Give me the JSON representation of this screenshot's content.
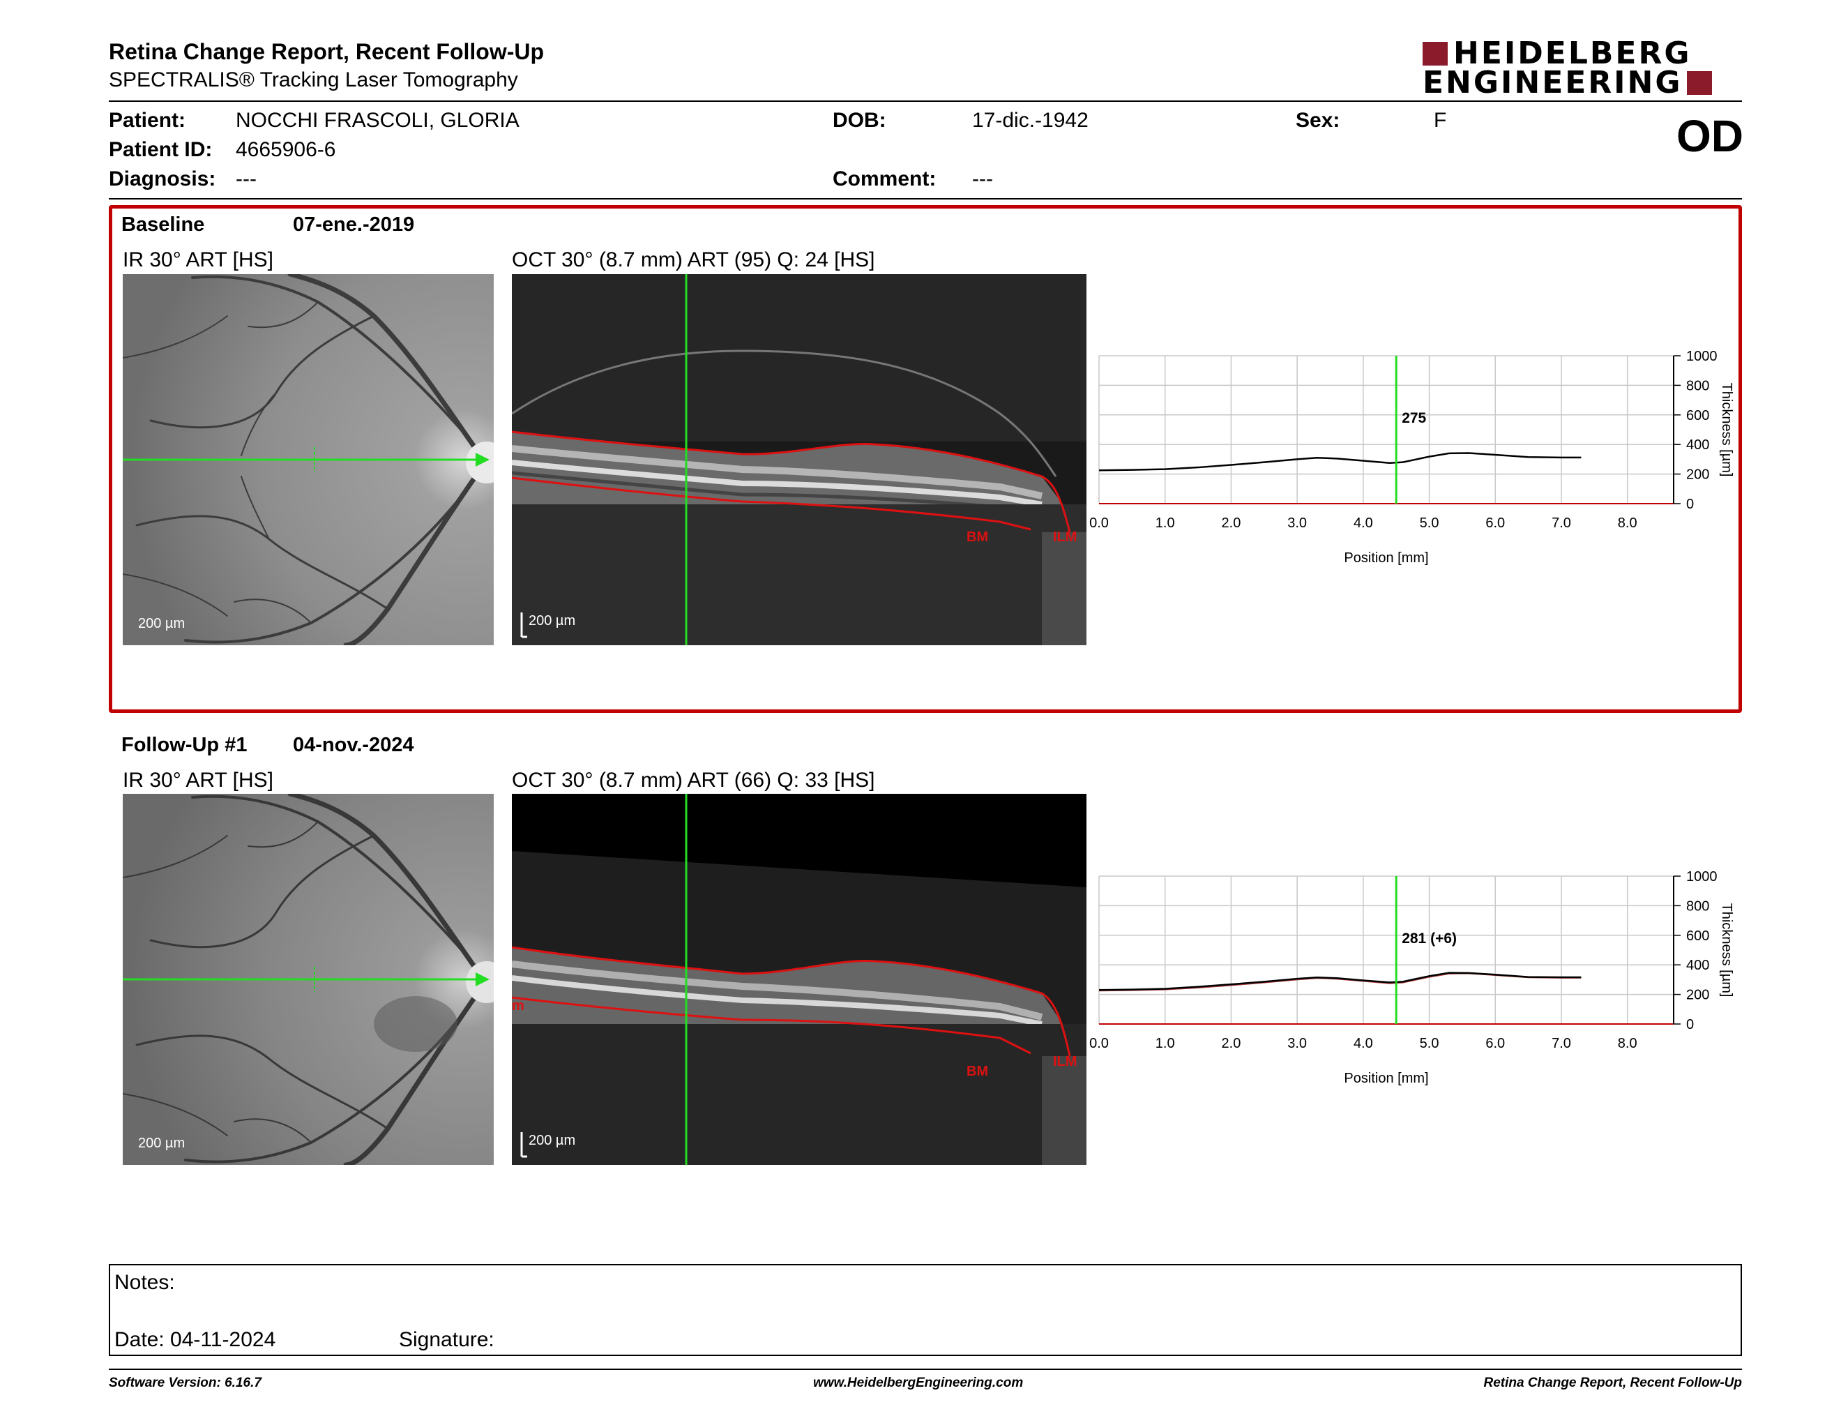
{
  "header": {
    "title": "Retina Change Report, Recent Follow-Up",
    "subtitle": "SPECTRALIS® Tracking Laser Tomography",
    "logo_line1": "HEIDELBERG",
    "logo_line2": "ENGINEERING",
    "eye": "OD"
  },
  "patient": {
    "patient_label": "Patient:",
    "patient_value": "NOCCHI FRASCOLI, GLORIA",
    "id_label": "Patient ID:",
    "id_value": "4665906-6",
    "diagnosis_label": "Diagnosis:",
    "diagnosis_value": "---",
    "dob_label": "DOB:",
    "dob_value": "17-dic.-1942",
    "comment_label": "Comment:",
    "comment_value": "---",
    "sex_label": "Sex:",
    "sex_value": "F"
  },
  "baseline": {
    "label": "Baseline",
    "date": "07-ene.-2019",
    "ir_caption": "IR 30° ART [HS]",
    "oct_caption": "OCT 30° (8.7 mm) ART (95) Q: 24 [HS]",
    "scale": "200 µm",
    "bm_label": "BM",
    "ilm_label": "ILM",
    "thickness_label": "275"
  },
  "followup": {
    "label": "Follow-Up #1",
    "date": "04-nov.-2024",
    "ir_caption": "IR 30° ART [HS]",
    "oct_caption": "OCT 30° (8.7 mm) ART (66) Q: 33 [HS]",
    "scale": "200 µm",
    "bm_label": "BM",
    "ilm_label": "ILM",
    "side_label": "m",
    "thickness_label": "281 (+6)"
  },
  "chart_data": [
    {
      "type": "line",
      "xlabel": "Position [mm]",
      "ylabel": "Thickness [µm]",
      "xlim": [
        0,
        8.7
      ],
      "ylim": [
        0,
        1000
      ],
      "xticks": [
        "0.0",
        "1.0",
        "2.0",
        "3.0",
        "4.0",
        "5.0",
        "6.0",
        "7.0",
        "8.0"
      ],
      "yticks": [
        "0",
        "200",
        "400",
        "600",
        "800",
        "1000"
      ],
      "marker_x": 4.5,
      "marker_label": "275",
      "series": [
        {
          "x": [
            0,
            0.5,
            1,
            1.5,
            2,
            2.5,
            3,
            3.3,
            3.6,
            4,
            4.4,
            4.6,
            5,
            5.3,
            5.6,
            6,
            6.5,
            7,
            7.3
          ],
          "values": [
            225,
            228,
            233,
            245,
            262,
            280,
            300,
            310,
            305,
            290,
            275,
            280,
            318,
            340,
            342,
            330,
            315,
            312,
            312
          ]
        }
      ]
    },
    {
      "type": "line",
      "xlabel": "Position [mm]",
      "ylabel": "Thickness [µm]",
      "xlim": [
        0,
        8.7
      ],
      "ylim": [
        0,
        1000
      ],
      "xticks": [
        "0.0",
        "1.0",
        "2.0",
        "3.0",
        "4.0",
        "5.0",
        "6.0",
        "7.0",
        "8.0"
      ],
      "yticks": [
        "0",
        "200",
        "400",
        "600",
        "800",
        "1000"
      ],
      "marker_x": 4.5,
      "marker_label": "281 (+6)",
      "series": [
        {
          "x": [
            0,
            0.5,
            1,
            1.5,
            2,
            2.5,
            3,
            3.3,
            3.6,
            4,
            4.4,
            4.6,
            5,
            5.3,
            5.6,
            6,
            6.5,
            7,
            7.3
          ],
          "values": [
            230,
            233,
            238,
            252,
            268,
            286,
            306,
            315,
            310,
            295,
            281,
            286,
            324,
            346,
            345,
            334,
            318,
            316,
            316
          ]
        },
        {
          "x": [
            0,
            0.5,
            1,
            1.5,
            2,
            2.5,
            3,
            3.3,
            3.6,
            4,
            4.4,
            4.6,
            5,
            5.3,
            5.6,
            6,
            6.5,
            7,
            7.3
          ],
          "values": [
            225,
            228,
            233,
            245,
            262,
            280,
            300,
            310,
            305,
            290,
            275,
            280,
            318,
            340,
            342,
            330,
            315,
            312,
            312
          ]
        }
      ]
    }
  ],
  "notes": {
    "notes_label": "Notes:",
    "date_label": "Date: 04-11-2024",
    "signature_label": "Signature:"
  },
  "footer": {
    "software": "Software Version: 6.16.7",
    "website": "www.HeidelbergEngineering.com",
    "report_name": "Retina Change Report, Recent Follow-Up"
  },
  "colors": {
    "accent_red": "#c00000",
    "logo_red": "#8b1a2b",
    "scan_line_green": "#22dd22",
    "segmentation_red": "#dd1111"
  }
}
